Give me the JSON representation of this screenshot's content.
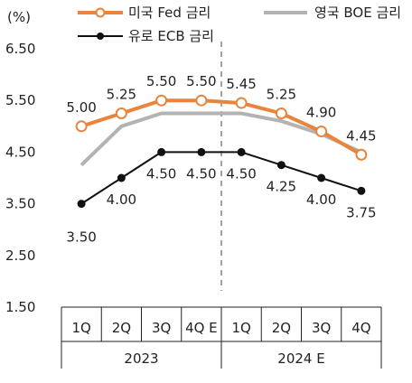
{
  "chart_data": {
    "type": "line",
    "unit_label": "(%)",
    "categories": [
      "1Q",
      "2Q",
      "3Q",
      "4Q E",
      "1Q",
      "2Q",
      "3Q",
      "4Q"
    ],
    "year_groups": [
      {
        "label": "2023",
        "span": [
          0,
          3
        ]
      },
      {
        "label": "2024 E",
        "span": [
          4,
          7
        ]
      }
    ],
    "ylim": [
      1.5,
      6.5
    ],
    "yticks": [
      1.5,
      2.5,
      3.5,
      4.5,
      5.5,
      6.5
    ],
    "ytick_labels": [
      "1.50",
      "2.50",
      "3.50",
      "4.50",
      "5.50",
      "6.50"
    ],
    "divider_after_index": 3,
    "series": [
      {
        "name": "미국 Fed 금리",
        "color": "#e8843c",
        "marker": "open-circle",
        "values": [
          5.0,
          5.25,
          5.5,
          5.5,
          5.45,
          5.25,
          4.9,
          4.45
        ],
        "labels": [
          "5.00",
          "5.25",
          "5.50",
          "5.50",
          "5.45",
          "5.25",
          "4.90",
          "4.45"
        ],
        "label_position": "above"
      },
      {
        "name": "영국 BOE 금리",
        "color": "#b3b3b3",
        "marker": "none",
        "values": [
          4.25,
          5.0,
          5.25,
          5.25,
          5.25,
          5.1,
          4.85,
          4.5
        ],
        "labels": null
      },
      {
        "name": "유로 ECB 금리",
        "color": "#111111",
        "marker": "filled-circle",
        "values": [
          3.5,
          4.0,
          4.5,
          4.5,
          4.5,
          4.25,
          4.0,
          3.75
        ],
        "labels": [
          "3.50",
          "4.00",
          "4.50",
          "4.50",
          "4.50",
          "4.25",
          "4.00",
          "3.75"
        ],
        "label_position": "below"
      }
    ],
    "legend_position": "top",
    "grid": false
  }
}
